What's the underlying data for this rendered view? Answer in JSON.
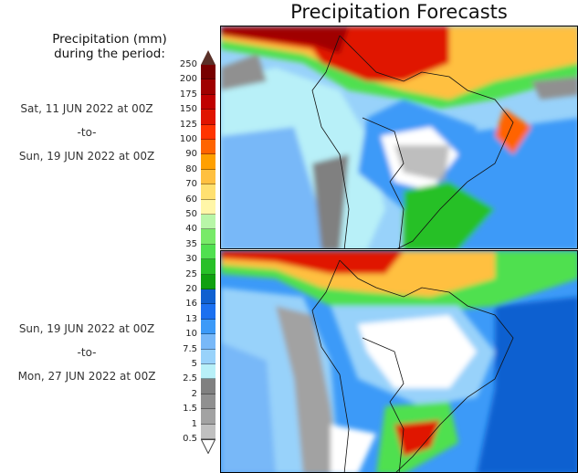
{
  "title": "Precipitation Forecasts",
  "legend": {
    "heading_line1": "Precipitation (mm)",
    "heading_line2": "during the period:",
    "labels": [
      "250",
      "200",
      "175",
      "150",
      "125",
      "100",
      "90",
      "80",
      "70",
      "60",
      "50",
      "40",
      "35",
      "30",
      "25",
      "20",
      "16",
      "13",
      "10",
      "7.5",
      "5",
      "2.5",
      "2",
      "1.5",
      "1",
      "0.5"
    ],
    "colors": [
      "#780000",
      "#a00000",
      "#c00000",
      "#e01400",
      "#ff3400",
      "#ff6400",
      "#ffa000",
      "#ffc040",
      "#ffe070",
      "#fff6a8",
      "#b8f6a8",
      "#78ea68",
      "#50e050",
      "#28c028",
      "#10a010",
      "#1060d0",
      "#1c70f0",
      "#3c9af8",
      "#78b8f8",
      "#98d2fa",
      "#b8f0f8",
      "#808080",
      "#909090",
      "#a2a2a2",
      "#c0c0c0"
    ],
    "over_color": "#5a3028",
    "under_color": "#ffffff"
  },
  "periods": [
    {
      "start": "Sat, 11 JUN 2022 at 00Z",
      "sep": "-to-",
      "end": "Sun, 19 JUN 2022 at 00Z"
    },
    {
      "start": "Sun, 19 JUN 2022 at 00Z",
      "sep": "-to-",
      "end": "Mon, 27 JUN 2022 at 00Z"
    }
  ]
}
